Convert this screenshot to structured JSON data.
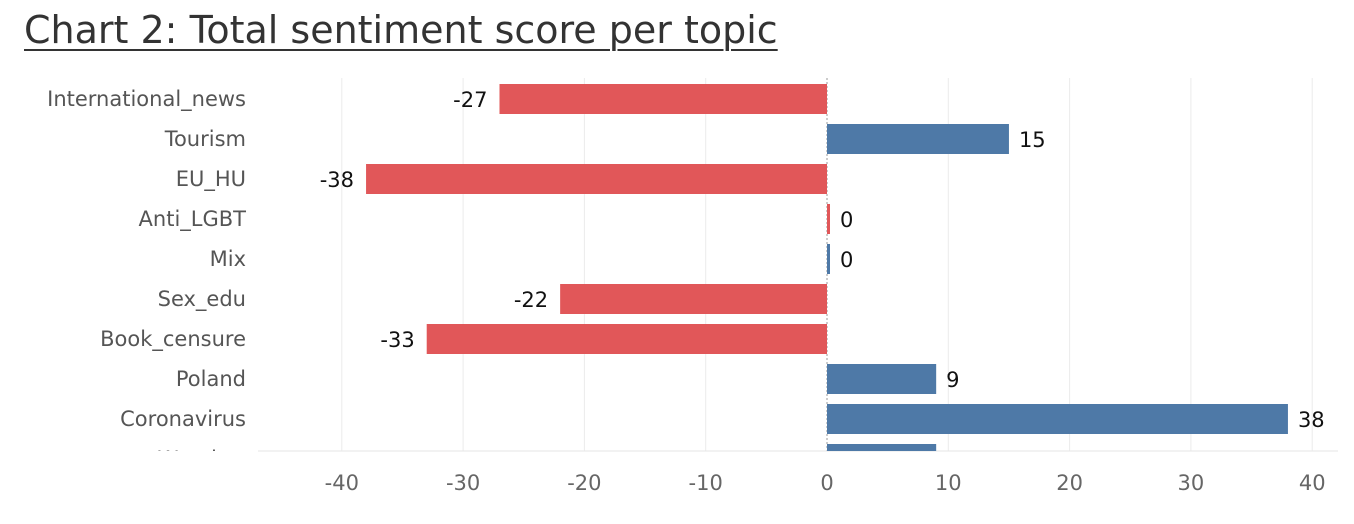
{
  "chart_data": {
    "type": "bar",
    "orientation": "horizontal",
    "title": "Chart 2: Total sentiment score per topic",
    "categories": [
      "International_news",
      "Tourism",
      "EU_HU",
      "Anti_LGBT",
      "Mix",
      "Sex_edu",
      "Book_censure",
      "Poland",
      "Coronavirus",
      "Weather"
    ],
    "values": [
      -27,
      15,
      -38,
      0,
      0,
      -22,
      -33,
      9,
      38,
      9
    ],
    "colors": [
      "#e15759",
      "#4e79a7",
      "#e15759",
      "#e15759",
      "#4e79a7",
      "#e15759",
      "#e15759",
      "#4e79a7",
      "#4e79a7",
      "#4e79a7"
    ],
    "xlim": [
      -47,
      42
    ],
    "xticks": [
      -40,
      -30,
      -20,
      -10,
      0,
      10,
      20,
      30,
      40
    ],
    "xlabel": "",
    "ylabel": "",
    "grid": "vertical",
    "legend": "none"
  }
}
